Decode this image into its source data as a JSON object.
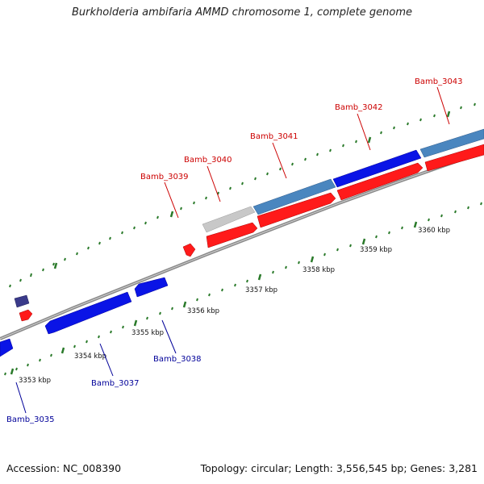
{
  "title": "Burkholderia ambifaria AMMD chromosome 1, complete genome",
  "footer": {
    "accession": "Accession: NC_008390",
    "summary": "Topology: circular; Length: 3,556,545 bp; Genes: 3,281"
  },
  "colors": {
    "gene_red": "#ff1a1a",
    "gene_blue": "#0a14e6",
    "gene_steel": "#4a86bf",
    "gene_gray": "#c8c8c8",
    "gene_navy": "#3a3a8a",
    "label_red": "#cc0000",
    "label_blue": "#000099",
    "backbone": "#8a8a8a",
    "tick": "#2a7a2a"
  },
  "scale_labels": [
    "3353 kbp",
    "3354 kbp",
    "3355 kbp",
    "3356 kbp",
    "3357 kbp",
    "3358 kbp",
    "3359 kbp",
    "3360 kbp"
  ],
  "forward_genes": [
    {
      "name": "Bamb_3039",
      "color": "red"
    },
    {
      "name": "Bamb_3040",
      "color": "gray"
    },
    {
      "name": "Bamb_3041",
      "color": "steel"
    },
    {
      "name": "Bamb_3042",
      "color": "blue"
    },
    {
      "name": "Bamb_3043",
      "color": "steel"
    }
  ],
  "reverse_genes": [
    {
      "name": "Bamb_3035",
      "color": "blue"
    },
    {
      "name": "Bamb_3037",
      "color": "blue"
    },
    {
      "name": "Bamb_3038",
      "color": "blue"
    }
  ]
}
